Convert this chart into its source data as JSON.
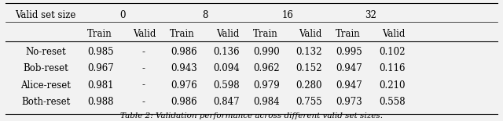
{
  "caption": "Table 2: Validation performance across different valid set sizes.",
  "header_row1_label": "Valid set size",
  "group_headers": [
    "0",
    "8",
    "16",
    "32"
  ],
  "subheaders": [
    "Train",
    "Valid"
  ],
  "rows": [
    [
      "No-reset",
      "0.985",
      "-",
      "0.986",
      "0.136",
      "0.990",
      "0.132",
      "0.995",
      "0.102"
    ],
    [
      "Bob-reset",
      "0.967",
      "-",
      "0.943",
      "0.094",
      "0.962",
      "0.152",
      "0.947",
      "0.116"
    ],
    [
      "Alice-reset",
      "0.981",
      "-",
      "0.976",
      "0.598",
      "0.979",
      "0.280",
      "0.947",
      "0.210"
    ],
    [
      "Both-reset",
      "0.988",
      "-",
      "0.986",
      "0.847",
      "0.984",
      "0.755",
      "0.973",
      "0.558"
    ]
  ],
  "bg_color": "#f2f2f2",
  "font_size": 8.5,
  "caption_font_size": 7.5
}
